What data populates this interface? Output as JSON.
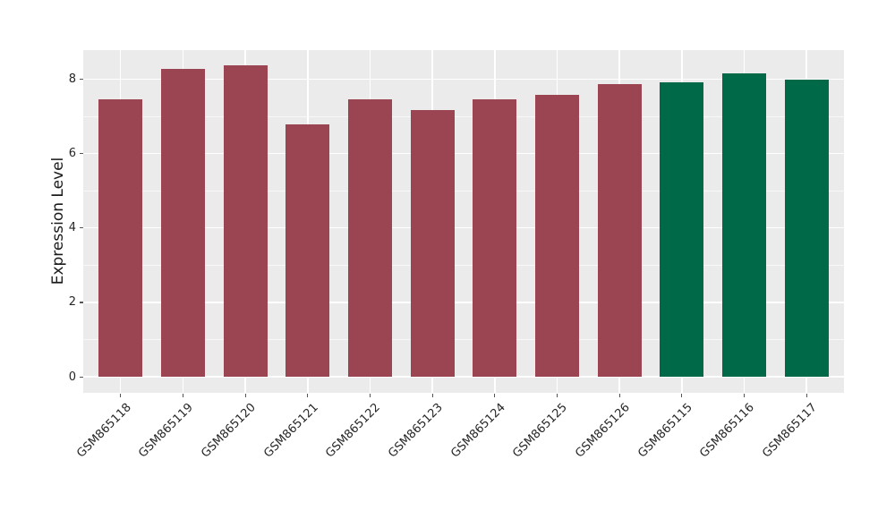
{
  "chart_data": {
    "type": "bar",
    "categories": [
      "GSM865118",
      "GSM865119",
      "GSM865120",
      "GSM865121",
      "GSM865122",
      "GSM865123",
      "GSM865124",
      "GSM865125",
      "GSM865126",
      "GSM865115",
      "GSM865116",
      "GSM865117"
    ],
    "values": [
      7.45,
      8.27,
      8.38,
      6.78,
      7.45,
      7.17,
      7.45,
      7.58,
      7.86,
      7.91,
      8.16,
      7.98
    ],
    "bar_colors": [
      "#9B4452",
      "#9B4452",
      "#9B4452",
      "#9B4452",
      "#9B4452",
      "#9B4452",
      "#9B4452",
      "#9B4452",
      "#9B4452",
      "#006948",
      "#006948",
      "#006948"
    ],
    "title": "",
    "xlabel": "",
    "ylabel": "Expression Level",
    "yticks": [
      0,
      2,
      4,
      6,
      8
    ],
    "yminorticks": [
      1,
      3,
      5,
      7
    ],
    "ylim": [
      -0.43,
      8.78
    ],
    "xlim_slots": 12.2,
    "grid": "on",
    "legend": "none",
    "panel_bg": "#EBEBEB",
    "grid_color": "#FFFFFF",
    "tick_color": "#555555",
    "text_color": "#262626",
    "group_colors": {
      "red_group": "#9B4452",
      "green_group": "#006948"
    }
  }
}
